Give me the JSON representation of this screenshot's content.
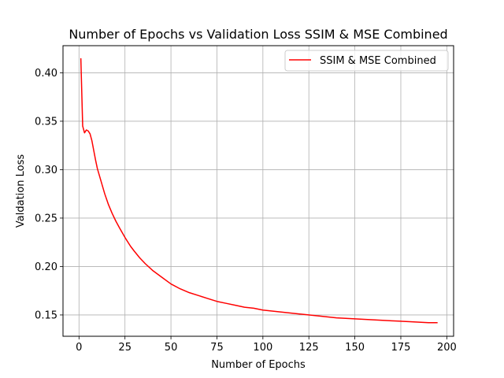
{
  "chart_data": {
    "type": "line",
    "title": "Number of Epochs vs Validation Loss SSIM & MSE Combined",
    "xlabel": "Number of Epochs",
    "ylabel": "Valdation Loss",
    "xlim": [
      -8.7,
      203.7
    ],
    "ylim": [
      0.128,
      0.428
    ],
    "xticks": [
      0,
      25,
      50,
      75,
      100,
      125,
      150,
      175,
      200
    ],
    "xtick_labels": [
      "0",
      "25",
      "50",
      "75",
      "100",
      "125",
      "150",
      "175",
      "200"
    ],
    "yticks": [
      0.15,
      0.2,
      0.25,
      0.3,
      0.35,
      0.4
    ],
    "ytick_labels": [
      "0.15",
      "0.20",
      "0.25",
      "0.30",
      "0.35",
      "0.40"
    ],
    "grid": true,
    "legend_position": "top-right",
    "series": [
      {
        "name": "SSIM & MSE Combined",
        "color": "#ff0000",
        "x": [
          1,
          2,
          3,
          4,
          5,
          6,
          7,
          8,
          9,
          10,
          12,
          14,
          16,
          18,
          20,
          22,
          25,
          28,
          30,
          33,
          36,
          40,
          45,
          50,
          55,
          60,
          65,
          70,
          75,
          80,
          85,
          90,
          95,
          100,
          110,
          120,
          130,
          140,
          150,
          160,
          170,
          180,
          190,
          195
        ],
        "y": [
          0.415,
          0.345,
          0.338,
          0.341,
          0.34,
          0.337,
          0.33,
          0.32,
          0.31,
          0.301,
          0.288,
          0.275,
          0.264,
          0.255,
          0.247,
          0.24,
          0.23,
          0.221,
          0.216,
          0.209,
          0.203,
          0.196,
          0.189,
          0.182,
          0.177,
          0.173,
          0.17,
          0.167,
          0.164,
          0.162,
          0.16,
          0.158,
          0.157,
          0.155,
          0.153,
          0.151,
          0.149,
          0.147,
          0.146,
          0.145,
          0.144,
          0.143,
          0.142,
          0.142
        ]
      }
    ]
  }
}
